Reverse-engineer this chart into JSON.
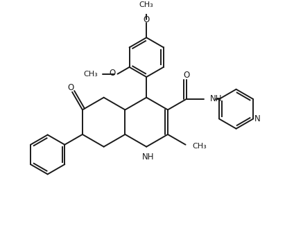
{
  "background_color": "#ffffff",
  "line_color": "#1a1a1a",
  "line_width": 1.4,
  "font_size": 8.5,
  "fig_width": 4.24,
  "fig_height": 3.52,
  "dpi": 100,
  "xlim": [
    0,
    10
  ],
  "ylim": [
    0,
    8.3
  ]
}
